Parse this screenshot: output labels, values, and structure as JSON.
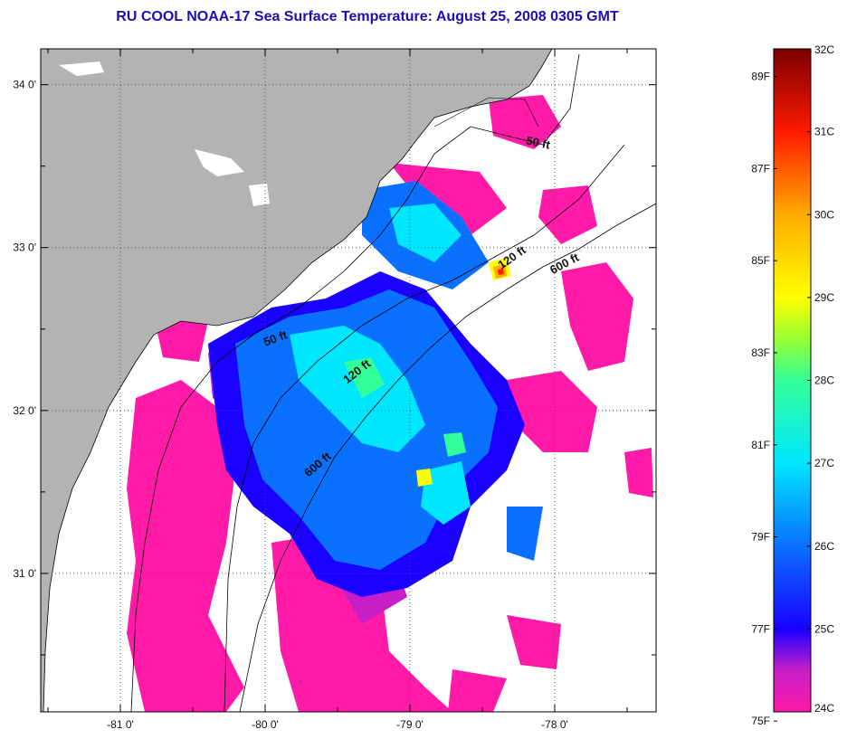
{
  "title": "RU COOL  NOAA-17  Sea Surface Temperature:  August 25, 2008 0305 GMT",
  "map": {
    "lon_range": [
      -81.55,
      -77.3
    ],
    "lat_range": [
      30.15,
      34.22
    ],
    "lat_ticks": [
      {
        "value": 34,
        "label": "34 0'"
      },
      {
        "value": 33,
        "label": "33 0'"
      },
      {
        "value": 32,
        "label": "32 0'"
      },
      {
        "value": 31,
        "label": "31 0'"
      }
    ],
    "lon_ticks": [
      {
        "value": -81,
        "label": "-81 0'"
      },
      {
        "value": -80,
        "label": "-80 0'"
      },
      {
        "value": -79,
        "label": "-79 0'"
      },
      {
        "value": -78,
        "label": "-78 0'"
      }
    ],
    "contour_labels": [
      {
        "text": "50 ft",
        "lon": -78.12,
        "lat": 33.62,
        "angle": 12
      },
      {
        "text": "120 ft",
        "lon": -78.28,
        "lat": 32.92,
        "angle": -35
      },
      {
        "text": "600 ft",
        "lon": -77.92,
        "lat": 32.88,
        "angle": -28
      },
      {
        "text": "50 ft",
        "lon": -79.92,
        "lat": 32.42,
        "angle": -20
      },
      {
        "text": "120 ft",
        "lon": -79.35,
        "lat": 32.22,
        "angle": -38
      },
      {
        "text": "600 ft",
        "lon": -79.62,
        "lat": 31.65,
        "angle": -40
      }
    ],
    "colors": {
      "land": "#b3b3b3",
      "cloud": "#ffffff",
      "frame": "#000000",
      "title": "#1a0fb8",
      "grid": "#555555"
    }
  },
  "colorbar": {
    "min_c": 24,
    "max_c": 32,
    "celsius_ticks": [
      {
        "value": 32,
        "label": "32C"
      },
      {
        "value": 31,
        "label": "31C"
      },
      {
        "value": 30,
        "label": "30C"
      },
      {
        "value": 29,
        "label": "29C"
      },
      {
        "value": 28,
        "label": "28C"
      },
      {
        "value": 27,
        "label": "27C"
      },
      {
        "value": 26,
        "label": "26C"
      },
      {
        "value": 25,
        "label": "25C"
      },
      {
        "value": 24,
        "label": "24C"
      }
    ],
    "fahrenheit_ticks": [
      {
        "value": 89,
        "label": "89F"
      },
      {
        "value": 87,
        "label": "87F"
      },
      {
        "value": 85,
        "label": "85F"
      },
      {
        "value": 83,
        "label": "83F"
      },
      {
        "value": 81,
        "label": "81F"
      },
      {
        "value": 79,
        "label": "79F"
      },
      {
        "value": 77,
        "label": "77F"
      },
      {
        "value": 75,
        "label": "75F"
      }
    ],
    "stops": [
      {
        "value": 24.0,
        "color": "#ff1aa8"
      },
      {
        "value": 24.5,
        "color": "#c71ec8"
      },
      {
        "value": 25.0,
        "color": "#1a00ff"
      },
      {
        "value": 26.0,
        "color": "#0a70ff"
      },
      {
        "value": 27.0,
        "color": "#00e6ff"
      },
      {
        "value": 28.0,
        "color": "#33ff99"
      },
      {
        "value": 28.5,
        "color": "#99ff33"
      },
      {
        "value": 29.0,
        "color": "#ffff00"
      },
      {
        "value": 30.0,
        "color": "#ffaa00"
      },
      {
        "value": 31.0,
        "color": "#ff1a00"
      },
      {
        "value": 32.0,
        "color": "#7a0000"
      }
    ]
  }
}
